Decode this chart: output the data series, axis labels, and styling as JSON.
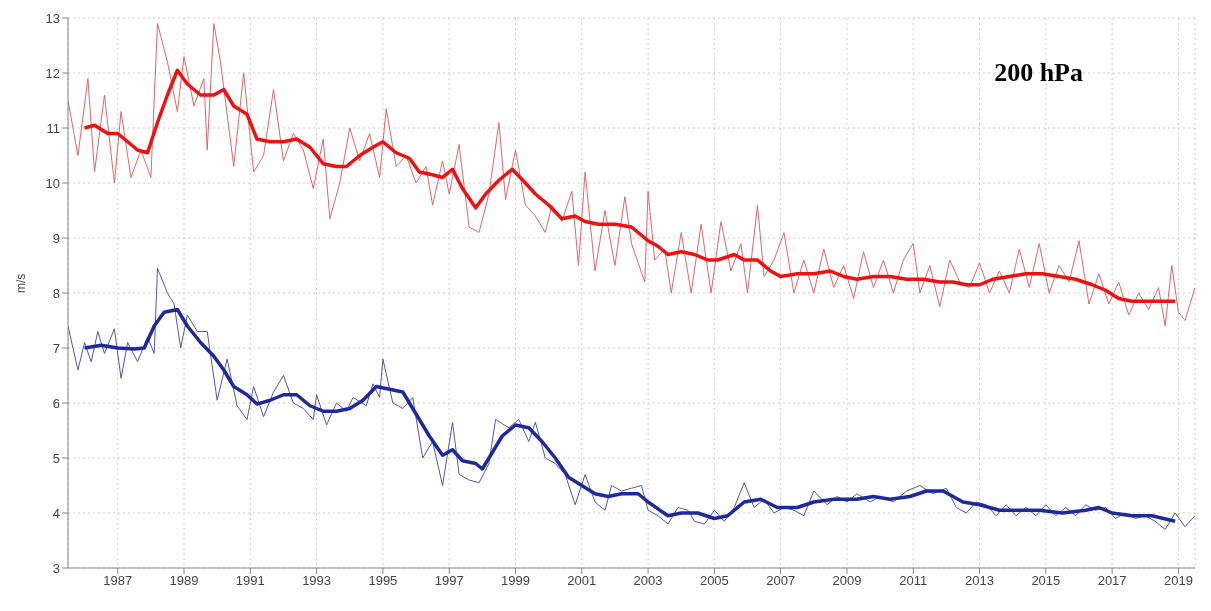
{
  "chart_data": {
    "type": "line",
    "ylabel": "m/s",
    "annotations": [
      "200 hPa"
    ],
    "xlim": [
      1985.5,
      2019.5
    ],
    "xticks": [
      1987,
      1989,
      1991,
      1993,
      1995,
      1997,
      1999,
      2001,
      2003,
      2005,
      2007,
      2009,
      2011,
      2013,
      2015,
      2017,
      2019
    ],
    "ylim": [
      3,
      13
    ],
    "yticks": [
      3,
      4,
      5,
      6,
      7,
      8,
      9,
      10,
      11,
      12,
      13
    ],
    "grid": true,
    "marker": "none",
    "line_style": "solid",
    "series": [
      {
        "color": "#e06666",
        "x": [
          1985.5,
          1985.8,
          1986.1,
          1986.3,
          1986.6,
          1986.9,
          1987.1,
          1987.4,
          1987.7,
          1988.0,
          1988.2,
          1988.5,
          1988.8,
          1989.0,
          1989.3,
          1989.6,
          1989.7,
          1989.9,
          1990.1,
          1990.5,
          1990.8,
          1991.1,
          1991.4,
          1991.7,
          1992.0,
          1992.3,
          1992.6,
          1992.9,
          1993.2,
          1993.4,
          1993.7,
          1994.0,
          1994.3,
          1994.6,
          1994.9,
          1995.1,
          1995.4,
          1995.7,
          1996.0,
          1996.3,
          1996.5,
          1996.8,
          1997.0,
          1997.3,
          1997.6,
          1997.9,
          1998.2,
          1998.5,
          1998.7,
          1999.0,
          1999.3,
          1999.6,
          1999.9,
          2000.1,
          2000.4,
          2000.7,
          2000.9,
          2001.1,
          2001.4,
          2001.7,
          2002.0,
          2002.3,
          2002.5,
          2002.9,
          2003.0,
          2003.2,
          2003.5,
          2003.7,
          2004.0,
          2004.3,
          2004.6,
          2004.9,
          2005.2,
          2005.5,
          2005.8,
          2006.0,
          2006.3,
          2006.5,
          2006.8,
          2007.1,
          2007.4,
          2007.7,
          2008.0,
          2008.3,
          2008.6,
          2008.9,
          2009.2,
          2009.5,
          2009.8,
          2010.1,
          2010.4,
          2010.7,
          2011.0,
          2011.2,
          2011.5,
          2011.8,
          2012.1,
          2012.4,
          2012.7,
          2013.0,
          2013.3,
          2013.6,
          2013.9,
          2014.2,
          2014.5,
          2014.8,
          2015.1,
          2015.4,
          2015.7,
          2016.0,
          2016.3,
          2016.6,
          2016.9,
          2017.2,
          2017.5,
          2017.8,
          2018.1,
          2018.4,
          2018.6,
          2018.8,
          2019.0,
          2019.2,
          2019.5
        ],
        "values": [
          11.5,
          10.5,
          11.9,
          10.2,
          11.6,
          10.0,
          11.3,
          10.1,
          10.6,
          10.1,
          12.9,
          12.2,
          11.3,
          12.3,
          11.4,
          11.9,
          10.6,
          12.9,
          12.2,
          10.3,
          12.0,
          10.2,
          10.5,
          11.7,
          10.4,
          10.9,
          10.6,
          9.9,
          10.8,
          9.35,
          10.0,
          11.0,
          10.4,
          10.9,
          10.1,
          11.35,
          10.3,
          10.5,
          10.0,
          10.3,
          9.6,
          10.4,
          9.8,
          10.7,
          9.2,
          9.1,
          9.8,
          11.1,
          9.7,
          10.6,
          9.6,
          9.4,
          9.1,
          9.6,
          9.3,
          9.85,
          8.5,
          10.2,
          8.4,
          9.5,
          8.5,
          9.75,
          8.9,
          8.2,
          9.85,
          8.6,
          8.8,
          8.0,
          9.1,
          8.0,
          9.25,
          8.0,
          9.3,
          8.4,
          8.9,
          8.0,
          9.6,
          8.3,
          8.6,
          9.1,
          8.0,
          8.6,
          8.0,
          8.8,
          8.1,
          8.5,
          7.9,
          8.75,
          8.1,
          8.6,
          8.0,
          8.6,
          8.9,
          8.0,
          8.5,
          7.75,
          8.6,
          8.2,
          8.1,
          8.55,
          8.0,
          8.4,
          8.0,
          8.8,
          8.1,
          8.9,
          8.0,
          8.5,
          8.2,
          8.95,
          7.8,
          8.35,
          7.8,
          8.2,
          7.6,
          8.0,
          7.7,
          8.1,
          7.4,
          8.5,
          7.65,
          7.5,
          8.1
        ]
      },
      {
        "color": "#ee1111",
        "x": [
          1986.0,
          1986.3,
          1986.7,
          1987.0,
          1987.3,
          1987.6,
          1987.9,
          1988.2,
          1988.5,
          1988.8,
          1989.1,
          1989.5,
          1989.9,
          1990.2,
          1990.5,
          1990.9,
          1991.2,
          1991.6,
          1992.0,
          1992.4,
          1992.8,
          1993.2,
          1993.6,
          1993.9,
          1994.3,
          1994.7,
          1995.0,
          1995.4,
          1995.8,
          1996.1,
          1996.5,
          1996.8,
          1997.1,
          1997.4,
          1997.8,
          1998.1,
          1998.5,
          1998.9,
          1999.3,
          1999.6,
          2000.0,
          2000.4,
          2000.8,
          2001.1,
          2001.5,
          2002.0,
          2002.5,
          2003.0,
          2003.3,
          2003.6,
          2004.0,
          2004.4,
          2004.8,
          2005.1,
          2005.6,
          2005.9,
          2006.3,
          2006.7,
          2007.0,
          2007.5,
          2008.0,
          2008.5,
          2008.9,
          2009.3,
          2009.8,
          2010.3,
          2010.8,
          2011.3,
          2011.8,
          2012.2,
          2012.6,
          2013.0,
          2013.4,
          2013.9,
          2014.4,
          2014.9,
          2015.4,
          2015.9,
          2016.4,
          2016.8,
          2017.2,
          2017.6,
          2018.0,
          2018.5,
          2018.9
        ],
        "values": [
          11.0,
          11.05,
          10.9,
          10.9,
          10.75,
          10.6,
          10.55,
          11.1,
          11.6,
          12.05,
          11.8,
          11.6,
          11.6,
          11.7,
          11.4,
          11.25,
          10.8,
          10.75,
          10.75,
          10.8,
          10.65,
          10.35,
          10.3,
          10.3,
          10.5,
          10.65,
          10.75,
          10.55,
          10.45,
          10.2,
          10.15,
          10.1,
          10.25,
          9.9,
          9.55,
          9.8,
          10.05,
          10.25,
          10.0,
          9.8,
          9.6,
          9.35,
          9.4,
          9.3,
          9.25,
          9.25,
          9.2,
          8.95,
          8.85,
          8.7,
          8.75,
          8.7,
          8.6,
          8.6,
          8.7,
          8.6,
          8.6,
          8.4,
          8.3,
          8.35,
          8.35,
          8.4,
          8.3,
          8.25,
          8.3,
          8.3,
          8.25,
          8.25,
          8.2,
          8.2,
          8.15,
          8.15,
          8.25,
          8.3,
          8.35,
          8.35,
          8.3,
          8.25,
          8.15,
          8.05,
          7.9,
          7.85,
          7.85,
          7.85,
          7.85
        ]
      },
      {
        "color": "#5555b0",
        "x": [
          1985.5,
          1985.8,
          1986.0,
          1986.2,
          1986.4,
          1986.6,
          1986.9,
          1987.1,
          1987.3,
          1987.6,
          1987.9,
          1988.1,
          1988.2,
          1988.5,
          1988.7,
          1988.9,
          1989.1,
          1989.4,
          1989.7,
          1990.0,
          1990.3,
          1990.6,
          1990.9,
          1991.1,
          1991.4,
          1991.7,
          1992.0,
          1992.3,
          1992.6,
          1992.9,
          1993.0,
          1993.3,
          1993.6,
          1993.9,
          1994.1,
          1994.5,
          1994.7,
          1994.9,
          1995.0,
          1995.3,
          1995.6,
          1995.9,
          1996.2,
          1996.5,
          1996.8,
          1997.1,
          1997.3,
          1997.6,
          1997.9,
          1998.2,
          1998.4,
          1998.8,
          1999.1,
          1999.4,
          1999.6,
          1999.9,
          2000.2,
          2000.5,
          2000.8,
          2001.1,
          2001.4,
          2001.7,
          2001.9,
          2002.2,
          2002.5,
          2002.8,
          2003.0,
          2003.3,
          2003.6,
          2003.9,
          2004.2,
          2004.4,
          2004.7,
          2005.0,
          2005.3,
          2005.6,
          2005.9,
          2006.2,
          2006.5,
          2006.8,
          2007.1,
          2007.4,
          2007.7,
          2008.0,
          2008.4,
          2008.7,
          2009.0,
          2009.3,
          2009.7,
          2010.0,
          2010.4,
          2010.8,
          2011.2,
          2011.6,
          2012.0,
          2012.3,
          2012.6,
          2012.9,
          2013.2,
          2013.5,
          2013.8,
          2014.1,
          2014.4,
          2014.7,
          2015.0,
          2015.3,
          2015.6,
          2015.9,
          2016.2,
          2016.5,
          2016.8,
          2017.1,
          2017.4,
          2017.7,
          2018.0,
          2018.3,
          2018.6,
          2018.9,
          2019.2,
          2019.5
        ],
        "values": [
          7.4,
          6.6,
          7.1,
          6.75,
          7.3,
          6.9,
          7.35,
          6.45,
          7.1,
          6.75,
          7.2,
          6.9,
          8.45,
          8.0,
          7.8,
          7.0,
          7.6,
          7.3,
          7.3,
          6.05,
          6.8,
          5.95,
          5.7,
          6.3,
          5.75,
          6.2,
          6.5,
          6.0,
          5.9,
          5.7,
          6.15,
          5.6,
          6.0,
          5.85,
          6.1,
          5.95,
          6.35,
          6.1,
          6.8,
          6.0,
          5.9,
          6.1,
          5.0,
          5.3,
          4.5,
          5.65,
          4.7,
          4.6,
          4.55,
          4.9,
          5.7,
          5.55,
          5.7,
          5.3,
          5.65,
          5.0,
          4.9,
          4.7,
          4.15,
          4.7,
          4.2,
          4.05,
          4.5,
          4.4,
          4.45,
          4.5,
          4.05,
          3.95,
          3.8,
          4.1,
          4.05,
          3.85,
          3.8,
          4.05,
          3.85,
          4.1,
          4.55,
          4.1,
          4.25,
          4.0,
          4.1,
          4.05,
          3.95,
          4.4,
          4.15,
          4.3,
          4.2,
          4.35,
          4.2,
          4.3,
          4.2,
          4.4,
          4.5,
          4.35,
          4.45,
          4.1,
          4.0,
          4.2,
          4.15,
          3.95,
          4.15,
          3.95,
          4.1,
          3.95,
          4.15,
          3.95,
          4.1,
          3.95,
          4.15,
          4.05,
          4.1,
          3.9,
          4.0,
          3.9,
          3.95,
          3.85,
          3.7,
          4.0,
          3.75,
          3.95
        ]
      },
      {
        "color": "#1f2a9a",
        "x": [
          1986.0,
          1986.5,
          1987.0,
          1987.5,
          1987.8,
          1988.1,
          1988.4,
          1988.8,
          1989.1,
          1989.5,
          1989.9,
          1990.2,
          1990.5,
          1990.9,
          1991.2,
          1991.6,
          1992.0,
          1992.4,
          1992.8,
          1993.2,
          1993.6,
          1994.0,
          1994.4,
          1994.8,
          1995.2,
          1995.6,
          1996.0,
          1996.4,
          1996.8,
          1997.1,
          1997.4,
          1997.8,
          1998.0,
          1998.3,
          1998.6,
          1999.0,
          1999.4,
          1999.8,
          2000.2,
          2000.6,
          2001.0,
          2001.4,
          2001.8,
          2002.2,
          2002.7,
          2003.0,
          2003.6,
          2004.0,
          2004.5,
          2005.0,
          2005.4,
          2005.9,
          2006.4,
          2006.9,
          2007.5,
          2008.0,
          2008.6,
          2009.3,
          2009.8,
          2010.3,
          2010.9,
          2011.4,
          2011.9,
          2012.5,
          2013.0,
          2013.6,
          2014.2,
          2014.8,
          2015.5,
          2016.2,
          2016.6,
          2017.0,
          2017.6,
          2018.2,
          2018.9
        ],
        "values": [
          7.0,
          7.05,
          7.0,
          6.98,
          7.0,
          7.4,
          7.65,
          7.7,
          7.4,
          7.1,
          6.85,
          6.6,
          6.3,
          6.15,
          5.98,
          6.05,
          6.15,
          6.15,
          5.95,
          5.85,
          5.85,
          5.9,
          6.05,
          6.3,
          6.25,
          6.2,
          5.8,
          5.4,
          5.05,
          5.15,
          4.95,
          4.9,
          4.8,
          5.1,
          5.4,
          5.6,
          5.55,
          5.3,
          5.0,
          4.65,
          4.5,
          4.35,
          4.3,
          4.35,
          4.35,
          4.2,
          3.95,
          4.0,
          4.0,
          3.9,
          3.95,
          4.2,
          4.25,
          4.1,
          4.1,
          4.2,
          4.25,
          4.25,
          4.3,
          4.25,
          4.3,
          4.4,
          4.4,
          4.2,
          4.15,
          4.05,
          4.05,
          4.05,
          4.0,
          4.05,
          4.1,
          4.0,
          3.95,
          3.95,
          3.85
        ]
      }
    ]
  }
}
